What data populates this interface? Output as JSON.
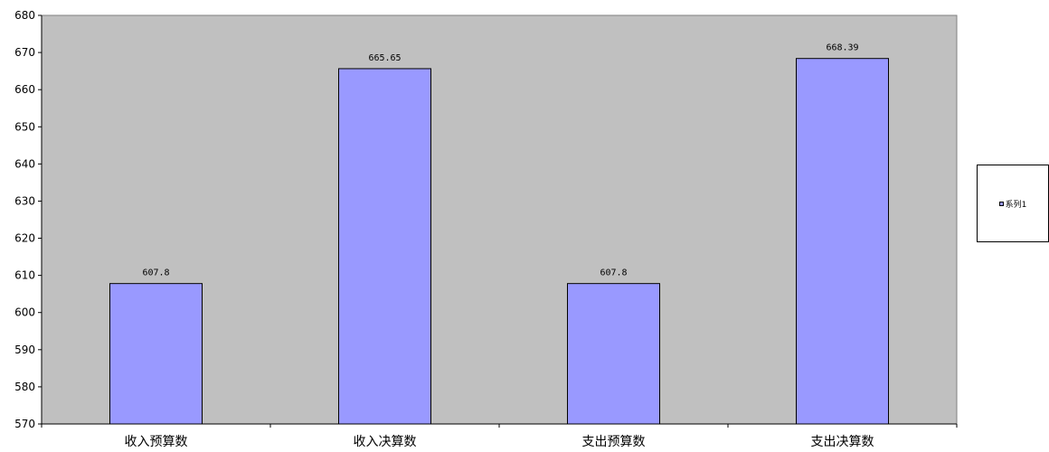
{
  "chart_data": {
    "type": "bar",
    "categories": [
      "收入预算数",
      "收入决算数",
      "支出预算数",
      "支出决算数"
    ],
    "series": [
      {
        "name": "系列1",
        "values": [
          607.8,
          665.65,
          607.8,
          668.39
        ]
      }
    ],
    "data_labels": [
      "607.8",
      "665.65",
      "607.8",
      "668.39"
    ],
    "ylim": [
      570,
      680
    ],
    "y_ticks": [
      "570",
      "580",
      "590",
      "600",
      "610",
      "620",
      "630",
      "640",
      "650",
      "660",
      "670",
      "680"
    ],
    "title": "",
    "xlabel": "",
    "ylabel": "",
    "grid": false,
    "legend_position": "right",
    "colors": {
      "plot_background": "#c0c0c0",
      "bar_fill": "#9999ff",
      "bar_stroke": "#000000",
      "axis": "#000000"
    }
  },
  "legend": {
    "entries": [
      {
        "label": "系列1",
        "color": "#9999ff"
      }
    ]
  }
}
